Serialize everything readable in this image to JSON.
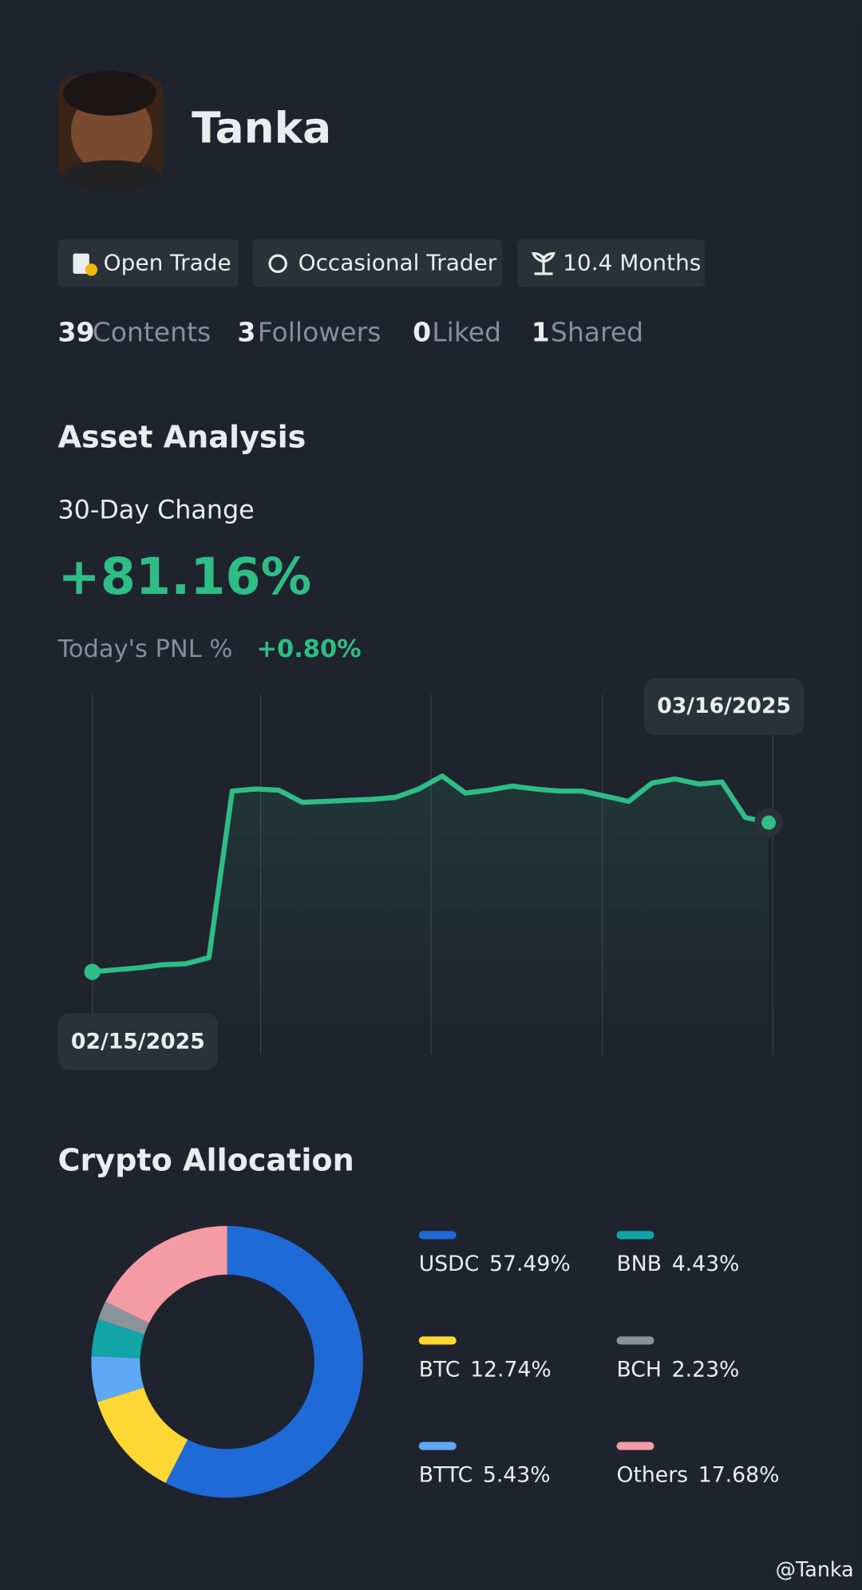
{
  "profile": {
    "name": "Tanka",
    "tags": [
      "Open Trade",
      "Occasional Trader",
      "10.4 Months"
    ],
    "stats": [
      {
        "count": 39,
        "label": "Contents"
      },
      {
        "count": 3,
        "label": "Followers"
      },
      {
        "count": 0,
        "label": "Liked"
      },
      {
        "count": 1,
        "label": "Shared"
      }
    ]
  },
  "asset_analysis": {
    "title": "Asset Analysis",
    "period": "30-Day Change",
    "change": "+81.16%",
    "pnl_label": "Today's PNL %",
    "pnl": "+0.80%"
  },
  "allocation_title": "Crypto Allocation",
  "watermark": "@Tanka",
  "chart_data": [
    {
      "type": "line",
      "color": "#2ebd85",
      "categories": [
        "02/15/2025",
        null,
        null,
        null,
        null,
        null,
        null,
        null,
        null,
        null,
        null,
        null,
        null,
        null,
        null,
        null,
        null,
        null,
        null,
        null,
        null,
        null,
        null,
        null,
        null,
        null,
        null,
        null,
        null,
        "03/16/2025"
      ],
      "values": [
        0,
        1.1,
        2.2,
        3.86,
        4.42,
        7.73,
        98.3,
        99.4,
        98.8,
        92.2,
        92.7,
        93.3,
        93.8,
        94.9,
        99.4,
        106.5,
        97.2,
        98.8,
        101.0,
        99.4,
        98.3,
        98.3,
        95.5,
        92.7,
        102.7,
        104.9,
        102.1,
        103.2,
        83.9,
        81.16
      ],
      "ylim": [
        -45,
        148
      ]
    },
    {
      "type": "pie",
      "categories": [
        "USDC",
        "BTC",
        "BTTC",
        "BNB",
        "BCH",
        "Others"
      ],
      "values": [
        57.49,
        12.74,
        5.43,
        4.43,
        2.23,
        17.68
      ],
      "value_labels": [
        "57.49%",
        "12.74%",
        "5.43%",
        "4.43%",
        "2.23%",
        "17.68%"
      ],
      "colors": [
        "#1e6ad6",
        "#fdd835",
        "#5fa8f5",
        "#11a5a8",
        "#8a929c",
        "#f59ba3"
      ]
    }
  ]
}
